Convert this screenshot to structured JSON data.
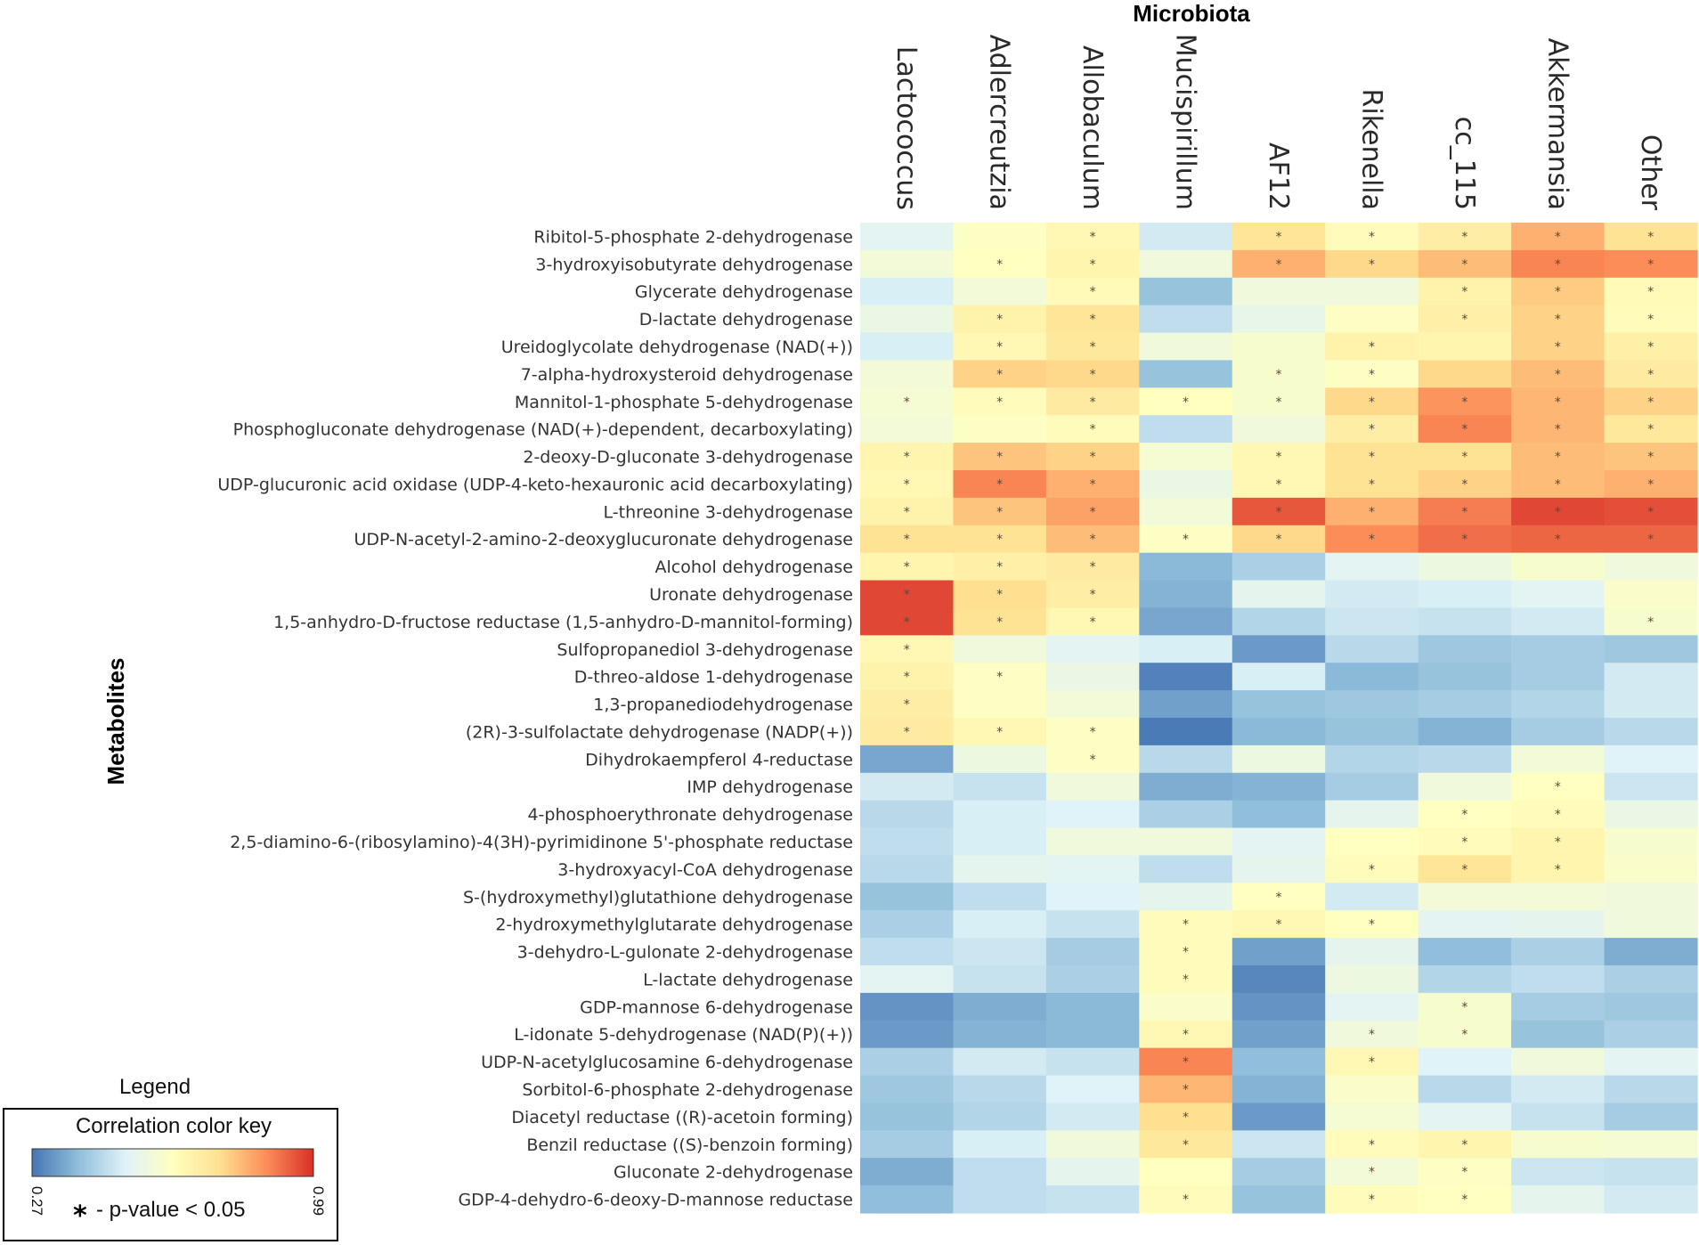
{
  "chart_data": {
    "type": "heatmap",
    "title": "Microbiota",
    "xlabel": "Microbiota",
    "ylabel": "Metabolites",
    "columns": [
      "Lactococcus",
      "Adlercreutzia",
      "Allobaculum",
      "Mucispirillum",
      "AF12",
      "Rikenella",
      "cc_115",
      "Akkermansia",
      "Other"
    ],
    "rows": [
      "Ribitol-5-phosphate 2-dehydrogenase",
      "3-hydroxyisobutyrate dehydrogenase",
      "Glycerate dehydrogenase",
      "D-lactate dehydrogenase",
      "Ureidoglycolate dehydrogenase (NAD(+))",
      "7-alpha-hydroxysteroid dehydrogenase",
      "Mannitol-1-phosphate 5-dehydrogenase",
      "Phosphogluconate dehydrogenase (NAD(+)-dependent, decarboxylating)",
      "2-deoxy-D-gluconate 3-dehydrogenase",
      "UDP-glucuronic acid oxidase (UDP-4-keto-hexauronic acid decarboxylating)",
      "L-threonine 3-dehydrogenase",
      "UDP-N-acetyl-2-amino-2-deoxyglucuronate dehydrogenase",
      "Alcohol dehydrogenase",
      "Uronate dehydrogenase",
      "1,5-anhydro-D-fructose reductase (1,5-anhydro-D-mannitol-forming)",
      "Sulfopropanediol 3-dehydrogenase",
      "D-threo-aldose 1-dehydrogenase",
      "1,3-propanediodehydrogenase",
      "(2R)-3-sulfolactate dehydrogenase (NADP(+))",
      "Dihydrokaempferol 4-reductase",
      "IMP dehydrogenase",
      "4-phosphoerythronate dehydrogenase",
      "2,5-diamino-6-(ribosylamino)-4(3H)-pyrimidinone 5'-phosphate reductase",
      "3-hydroxyacyl-CoA dehydrogenase",
      "S-(hydroxymethyl)glutathione dehydrogenase",
      "2-hydroxymethylglutarate dehydrogenase",
      "3-dehydro-L-gulonate 2-dehydrogenase",
      "L-lactate dehydrogenase",
      "GDP-mannose 6-dehydrogenase",
      "L-idonate 5-dehydrogenase (NAD(P)(+))",
      "UDP-N-acetylglucosamine 6-dehydrogenase",
      "Sorbitol-6-phosphate 2-dehydrogenase",
      "Diacetyl reductase ((R)-acetoin forming)",
      "Benzil reductase ((S)-benzoin forming)",
      "Gluconate 2-dehydrogenase",
      "GDP-4-dehydro-6-deoxy-D-mannose reductase"
    ],
    "values": [
      [
        0.52,
        0.62,
        0.66,
        0.49,
        0.73,
        0.64,
        0.7,
        0.82,
        0.74
      ],
      [
        0.58,
        0.63,
        0.67,
        0.57,
        0.82,
        0.76,
        0.8,
        0.88,
        0.87
      ],
      [
        0.5,
        0.58,
        0.65,
        0.4,
        0.57,
        0.57,
        0.68,
        0.78,
        0.65
      ],
      [
        0.55,
        0.68,
        0.73,
        0.46,
        0.54,
        0.62,
        0.69,
        0.77,
        0.64
      ],
      [
        0.5,
        0.66,
        0.72,
        0.57,
        0.6,
        0.68,
        0.67,
        0.77,
        0.69
      ],
      [
        0.58,
        0.77,
        0.76,
        0.4,
        0.6,
        0.62,
        0.76,
        0.8,
        0.71
      ],
      [
        0.59,
        0.64,
        0.71,
        0.63,
        0.6,
        0.76,
        0.86,
        0.81,
        0.77
      ],
      [
        0.58,
        0.62,
        0.64,
        0.46,
        0.57,
        0.7,
        0.88,
        0.81,
        0.72
      ],
      [
        0.67,
        0.79,
        0.77,
        0.59,
        0.66,
        0.74,
        0.74,
        0.8,
        0.79
      ],
      [
        0.66,
        0.88,
        0.82,
        0.55,
        0.66,
        0.74,
        0.77,
        0.8,
        0.82
      ],
      [
        0.68,
        0.79,
        0.84,
        0.58,
        0.94,
        0.82,
        0.89,
        0.96,
        0.95
      ],
      [
        0.74,
        0.74,
        0.8,
        0.62,
        0.76,
        0.87,
        0.91,
        0.92,
        0.92
      ],
      [
        0.67,
        0.69,
        0.71,
        0.38,
        0.43,
        0.52,
        0.56,
        0.6,
        0.57
      ],
      [
        0.96,
        0.75,
        0.7,
        0.37,
        0.53,
        0.49,
        0.5,
        0.52,
        0.61
      ],
      [
        0.96,
        0.74,
        0.66,
        0.35,
        0.44,
        0.48,
        0.47,
        0.49,
        0.6
      ],
      [
        0.66,
        0.57,
        0.52,
        0.5,
        0.33,
        0.45,
        0.41,
        0.42,
        0.41
      ],
      [
        0.68,
        0.62,
        0.55,
        0.29,
        0.5,
        0.38,
        0.4,
        0.42,
        0.49
      ],
      [
        0.7,
        0.62,
        0.58,
        0.34,
        0.4,
        0.41,
        0.42,
        0.44,
        0.49
      ],
      [
        0.71,
        0.66,
        0.62,
        0.28,
        0.38,
        0.4,
        0.37,
        0.42,
        0.45
      ],
      [
        0.35,
        0.56,
        0.62,
        0.45,
        0.56,
        0.44,
        0.45,
        0.58,
        0.51
      ],
      [
        0.49,
        0.47,
        0.57,
        0.36,
        0.37,
        0.42,
        0.57,
        0.63,
        0.48
      ],
      [
        0.45,
        0.5,
        0.51,
        0.43,
        0.39,
        0.53,
        0.63,
        0.64,
        0.55
      ],
      [
        0.46,
        0.5,
        0.57,
        0.57,
        0.52,
        0.63,
        0.64,
        0.67,
        0.6
      ],
      [
        0.45,
        0.53,
        0.52,
        0.46,
        0.53,
        0.64,
        0.73,
        0.67,
        0.61
      ],
      [
        0.4,
        0.46,
        0.51,
        0.53,
        0.63,
        0.49,
        0.58,
        0.58,
        0.57
      ],
      [
        0.43,
        0.5,
        0.47,
        0.64,
        0.66,
        0.63,
        0.52,
        0.53,
        0.57
      ],
      [
        0.46,
        0.48,
        0.42,
        0.64,
        0.34,
        0.53,
        0.39,
        0.43,
        0.36
      ],
      [
        0.52,
        0.47,
        0.43,
        0.64,
        0.3,
        0.56,
        0.44,
        0.46,
        0.43
      ],
      [
        0.32,
        0.36,
        0.38,
        0.61,
        0.32,
        0.52,
        0.6,
        0.42,
        0.41
      ],
      [
        0.33,
        0.37,
        0.38,
        0.66,
        0.34,
        0.57,
        0.6,
        0.4,
        0.43
      ],
      [
        0.43,
        0.49,
        0.47,
        0.88,
        0.39,
        0.66,
        0.51,
        0.57,
        0.52
      ],
      [
        0.41,
        0.45,
        0.51,
        0.81,
        0.37,
        0.61,
        0.45,
        0.49,
        0.45
      ],
      [
        0.4,
        0.44,
        0.49,
        0.75,
        0.33,
        0.59,
        0.52,
        0.47,
        0.42
      ],
      [
        0.42,
        0.5,
        0.57,
        0.72,
        0.48,
        0.64,
        0.67,
        0.6,
        0.59
      ],
      [
        0.36,
        0.46,
        0.53,
        0.63,
        0.42,
        0.58,
        0.62,
        0.48,
        0.47
      ],
      [
        0.39,
        0.46,
        0.47,
        0.64,
        0.4,
        0.64,
        0.63,
        0.53,
        0.49
      ]
    ],
    "significant": [
      [
        0,
        0,
        1,
        0,
        1,
        1,
        1,
        1,
        1
      ],
      [
        0,
        1,
        1,
        0,
        1,
        1,
        1,
        1,
        1
      ],
      [
        0,
        0,
        1,
        0,
        0,
        0,
        1,
        1,
        1
      ],
      [
        0,
        1,
        1,
        0,
        0,
        0,
        1,
        1,
        1
      ],
      [
        0,
        1,
        1,
        0,
        0,
        1,
        0,
        1,
        1
      ],
      [
        0,
        1,
        1,
        0,
        1,
        1,
        0,
        1,
        1
      ],
      [
        1,
        1,
        1,
        1,
        1,
        1,
        1,
        1,
        1
      ],
      [
        0,
        0,
        1,
        0,
        0,
        1,
        1,
        1,
        1
      ],
      [
        1,
        1,
        1,
        0,
        1,
        1,
        1,
        1,
        1
      ],
      [
        1,
        1,
        1,
        0,
        1,
        1,
        1,
        1,
        1
      ],
      [
        1,
        1,
        1,
        0,
        1,
        1,
        1,
        1,
        1
      ],
      [
        1,
        1,
        1,
        1,
        1,
        1,
        1,
        1,
        1
      ],
      [
        1,
        1,
        1,
        0,
        0,
        0,
        0,
        0,
        0
      ],
      [
        1,
        1,
        1,
        0,
        0,
        0,
        0,
        0,
        0
      ],
      [
        1,
        1,
        1,
        0,
        0,
        0,
        0,
        0,
        1
      ],
      [
        1,
        0,
        0,
        0,
        0,
        0,
        0,
        0,
        0
      ],
      [
        1,
        1,
        0,
        0,
        0,
        0,
        0,
        0,
        0
      ],
      [
        1,
        0,
        0,
        0,
        0,
        0,
        0,
        0,
        0
      ],
      [
        1,
        1,
        1,
        0,
        0,
        0,
        0,
        0,
        0
      ],
      [
        0,
        0,
        1,
        0,
        0,
        0,
        0,
        0,
        0
      ],
      [
        0,
        0,
        0,
        0,
        0,
        0,
        0,
        1,
        0
      ],
      [
        0,
        0,
        0,
        0,
        0,
        0,
        1,
        1,
        0
      ],
      [
        0,
        0,
        0,
        0,
        0,
        0,
        1,
        1,
        0
      ],
      [
        0,
        0,
        0,
        0,
        0,
        1,
        1,
        1,
        0
      ],
      [
        0,
        0,
        0,
        0,
        1,
        0,
        0,
        0,
        0
      ],
      [
        0,
        0,
        0,
        1,
        1,
        1,
        0,
        0,
        0
      ],
      [
        0,
        0,
        0,
        1,
        0,
        0,
        0,
        0,
        0
      ],
      [
        0,
        0,
        0,
        1,
        0,
        0,
        0,
        0,
        0
      ],
      [
        0,
        0,
        0,
        0,
        0,
        0,
        1,
        0,
        0
      ],
      [
        0,
        0,
        0,
        1,
        0,
        1,
        1,
        0,
        0
      ],
      [
        0,
        0,
        0,
        1,
        0,
        1,
        0,
        0,
        0
      ],
      [
        0,
        0,
        0,
        1,
        0,
        0,
        0,
        0,
        0
      ],
      [
        0,
        0,
        0,
        1,
        0,
        0,
        0,
        0,
        0
      ],
      [
        0,
        0,
        0,
        1,
        0,
        1,
        1,
        0,
        0
      ],
      [
        0,
        0,
        0,
        0,
        0,
        1,
        1,
        0,
        0
      ],
      [
        0,
        0,
        0,
        1,
        0,
        1,
        1,
        0,
        0
      ]
    ],
    "star_symbol": "*",
    "color_range": [
      0.27,
      0.99
    ],
    "colorscale": [
      "#4575b4",
      "#91bfdb",
      "#e0f3f8",
      "#ffffbf",
      "#fee090",
      "#fc8d59",
      "#d73027"
    ],
    "legend": {
      "heading": "Legend",
      "title": "Correlation color key",
      "min_label": "0.27",
      "max_label": "0.99",
      "note": "- p-value < 0.05",
      "star": "*"
    }
  }
}
